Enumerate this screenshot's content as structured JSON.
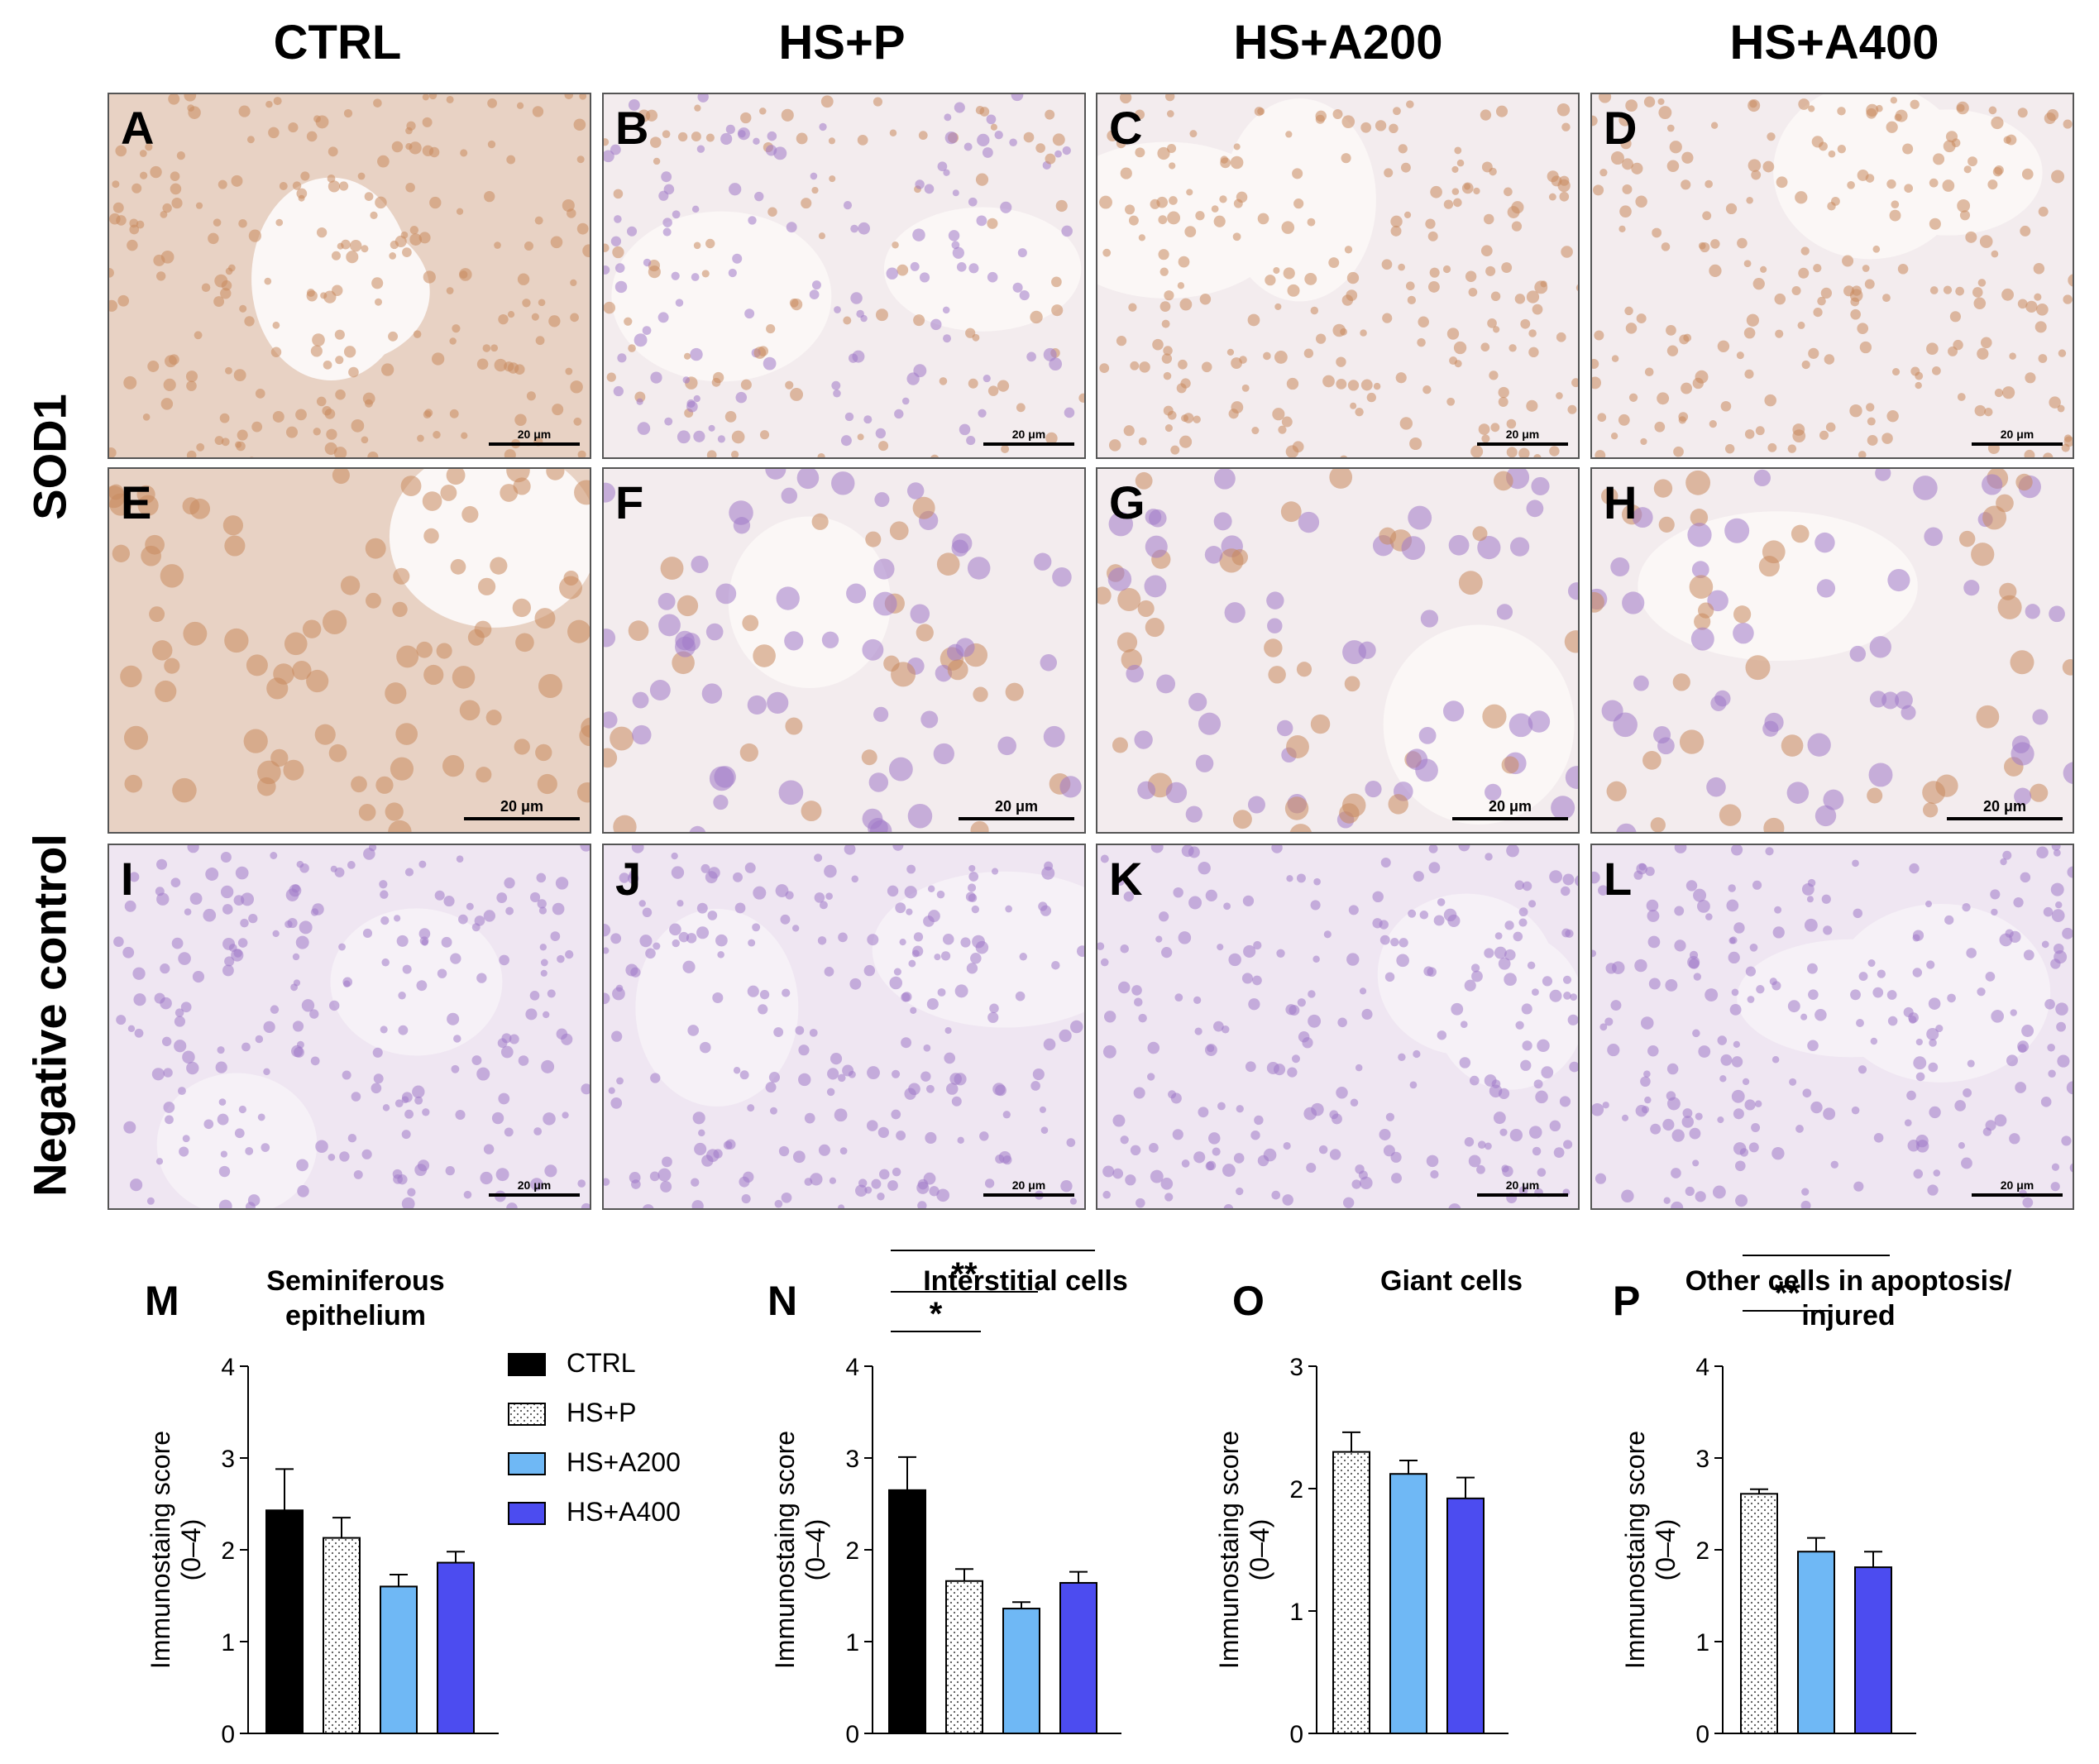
{
  "columns": [
    "CTRL",
    "HS+P",
    "HS+A200",
    "HS+A400"
  ],
  "rows": [
    "SOD1",
    "Negative control"
  ],
  "panels": [
    {
      "label": "A",
      "scale": "20 μm"
    },
    {
      "label": "B",
      "scale": "20 μm"
    },
    {
      "label": "C",
      "scale": "20 μm"
    },
    {
      "label": "D",
      "scale": "20 μm"
    },
    {
      "label": "E",
      "scale": "20 μm"
    },
    {
      "label": "F",
      "scale": "20 μm"
    },
    {
      "label": "G",
      "scale": "20 μm"
    },
    {
      "label": "H",
      "scale": "20 μm"
    },
    {
      "label": "I",
      "scale": "20 μm"
    },
    {
      "label": "J",
      "scale": "20 μm"
    },
    {
      "label": "K",
      "scale": "20 μm"
    },
    {
      "label": "L",
      "scale": "20 μm"
    }
  ],
  "colors": {
    "CTRL": "#000000",
    "HS+P": "#f2f2f2",
    "HS+A200": "#6fb8f5",
    "HS+A400": "#4c4cf0",
    "stain_brown": "#c98a5e",
    "stain_purple": "#a07ac8"
  },
  "legend": [
    "CTRL",
    "HS+P",
    "HS+A200",
    "HS+A400"
  ],
  "chart_data": [
    {
      "panel": "M",
      "type": "bar",
      "title": "Seminiferous epithelium",
      "ylabel": "Immunostaing score (0–4)",
      "ylim": [
        0,
        4
      ],
      "yticks": [
        "0",
        "1",
        "2",
        "3",
        "4"
      ],
      "categories": [
        "CTRL",
        "HS+P",
        "HS+A200",
        "HS+A400"
      ],
      "values": [
        2.43,
        2.13,
        1.6,
        1.86
      ],
      "errors": [
        0.45,
        0.22,
        0.13,
        0.12
      ],
      "significance": []
    },
    {
      "panel": "N",
      "type": "bar",
      "title": "Interstitial cells",
      "ylabel": "Immunostaing score (0–4)",
      "ylim": [
        0,
        4
      ],
      "yticks": [
        "0",
        "1",
        "2",
        "3",
        "4"
      ],
      "categories": [
        "CTRL",
        "HS+P",
        "HS+A200",
        "HS+A400"
      ],
      "values": [
        2.65,
        1.66,
        1.36,
        1.64
      ],
      "errors": [
        0.36,
        0.13,
        0.07,
        0.12
      ],
      "significance": [
        {
          "from": "CTRL",
          "to": "HS+P",
          "label": "*"
        },
        {
          "from": "CTRL",
          "to": "HS+A200",
          "label": "**"
        },
        {
          "from": "CTRL",
          "to": "HS+A400",
          "label": "*"
        }
      ]
    },
    {
      "panel": "O",
      "type": "bar",
      "title": "Giant cells",
      "ylabel": "Immunostaing score (0–4)",
      "ylim": [
        0,
        3
      ],
      "yticks": [
        "0",
        "1",
        "2",
        "3"
      ],
      "categories": [
        "HS+P",
        "HS+A200",
        "HS+A400"
      ],
      "values": [
        2.3,
        2.12,
        1.92
      ],
      "errors": [
        0.16,
        0.11,
        0.17
      ],
      "significance": []
    },
    {
      "panel": "P",
      "type": "bar",
      "title": "Other cells in apoptosis/ injured",
      "ylabel": "Immunostaing score (0–4)",
      "ylim": [
        0,
        4
      ],
      "yticks": [
        "0",
        "1",
        "2",
        "3",
        "4"
      ],
      "categories": [
        "HS+P",
        "HS+A200",
        "HS+A400"
      ],
      "values": [
        2.61,
        1.98,
        1.81
      ],
      "errors": [
        0.05,
        0.15,
        0.17
      ],
      "significance": [
        {
          "from": "HS+P",
          "to": "HS+A200",
          "label": "**"
        },
        {
          "from": "HS+P",
          "to": "HS+A400",
          "label": "**"
        }
      ]
    }
  ]
}
